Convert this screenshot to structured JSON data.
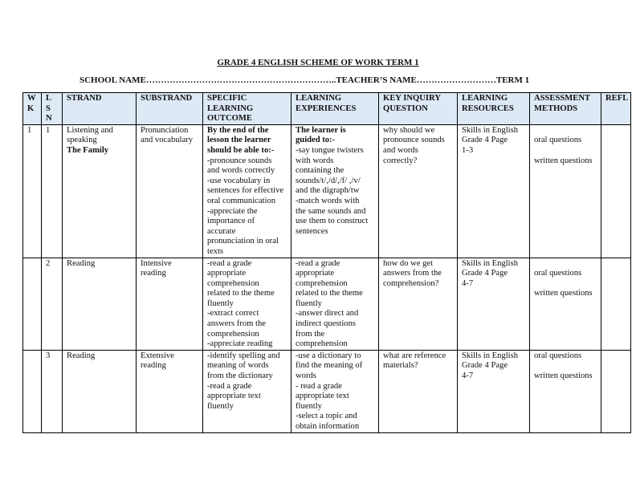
{
  "document": {
    "title": "GRADE 4 ENGLISH   SCHEME OF WORK TERM 1",
    "info_line": "SCHOOL NAME………………………………………………………..TEACHER’S NAME………………………TERM 1"
  },
  "table": {
    "headers": [
      [
        "W",
        "K"
      ],
      [
        "L",
        "S",
        "N"
      ],
      [
        "STRAND"
      ],
      [
        "SUBSTRAND"
      ],
      [
        "SPECIFIC",
        "LEARNING",
        "OUTCOME"
      ],
      [
        "LEARNING",
        "EXPERIENCES"
      ],
      [
        "KEY INQUIRY",
        "QUESTION"
      ],
      [
        "LEARNING",
        "RESOURCES"
      ],
      [
        "ASSESSMENT",
        "METHODS"
      ],
      [
        "REFL"
      ]
    ],
    "header_bg": "#dde9f5",
    "rows": [
      {
        "cells": [
          {
            "lines": [
              "1"
            ]
          },
          {
            "lines": [
              "1"
            ]
          },
          {
            "lines": [
              "Listening and",
              "speaking"
            ],
            "bold_after": [
              "The Family"
            ]
          },
          {
            "lines": [
              "Pronunciation",
              "and vocabulary"
            ]
          },
          {
            "bold": [
              "By the end of the",
              "lesson the learner",
              "should be able to:-"
            ],
            "lines": [
              "-pronounce sounds",
              "and words correctly",
              "-use vocabulary in",
              "sentences for effective",
              "oral communication",
              "-appreciate the",
              "importance of",
              "accurate",
              "pronunciation in oral",
              "texts"
            ]
          },
          {
            "bold": [
              "The learner is",
              "guided to:-"
            ],
            "lines": [
              "-say tongue twisters",
              "with words",
              "containing the",
              "sounds/t/,/d/,/f/ ,/v/",
              "and the digraph/tw",
              "-match words with",
              "the same sounds and",
              "use them to construct",
              "sentences"
            ]
          },
          {
            "lines": [
              "why should we",
              "pronounce sounds",
              "and words",
              "correctly?"
            ]
          },
          {
            "lines": [
              "Skills in English",
              "Grade 4 Page",
              "1-3"
            ]
          },
          {
            "lines": [
              "",
              "oral questions",
              "",
              "written questions"
            ]
          },
          {
            "lines": []
          }
        ]
      },
      {
        "cells": [
          {
            "lines": []
          },
          {
            "lines": [
              "2"
            ]
          },
          {
            "lines": [
              "Reading"
            ]
          },
          {
            "lines": [
              "Intensive",
              "reading"
            ]
          },
          {
            "lines": [
              " -read a grade",
              "appropriate",
              "comprehension",
              "related to the theme",
              "fluently",
              "-extract correct",
              "answers from the",
              "comprehension",
              "-appreciate reading"
            ]
          },
          {
            "lines": [
              "-read a grade",
              "appropriate",
              "comprehension",
              "related to the theme",
              "fluently",
              "-answer direct and",
              "indirect questions",
              "from the",
              "comprehension"
            ]
          },
          {
            "lines": [
              "how do we get",
              "answers from the",
              "comprehension?"
            ]
          },
          {
            "lines": [
              "Skills in English",
              "Grade 4 Page",
              " 4-7"
            ]
          },
          {
            "lines": [
              "",
              "oral questions",
              "",
              "written questions"
            ]
          },
          {
            "lines": []
          }
        ]
      },
      {
        "cells": [
          {
            "lines": []
          },
          {
            "lines": [
              "3"
            ]
          },
          {
            "lines": [
              "Reading"
            ]
          },
          {
            "lines": [
              "Extensive",
              "reading"
            ]
          },
          {
            "lines": [
              " -identify spelling and",
              "meaning of words",
              "from the dictionary",
              "-read a grade",
              "appropriate text",
              "fluently"
            ]
          },
          {
            "lines": [
              "-use a dictionary to",
              "find the meaning of",
              "words",
              "- read a grade",
              "appropriate text",
              "fluently",
              "-select a topic and",
              "obtain information"
            ]
          },
          {
            "lines": [
              "what are reference",
              "materials?"
            ]
          },
          {
            "lines": [
              "Skills in English",
              "Grade 4 Page",
              "4-7"
            ]
          },
          {
            "lines": [
              "oral questions",
              "",
              "written questions"
            ]
          },
          {
            "lines": []
          }
        ]
      }
    ]
  }
}
